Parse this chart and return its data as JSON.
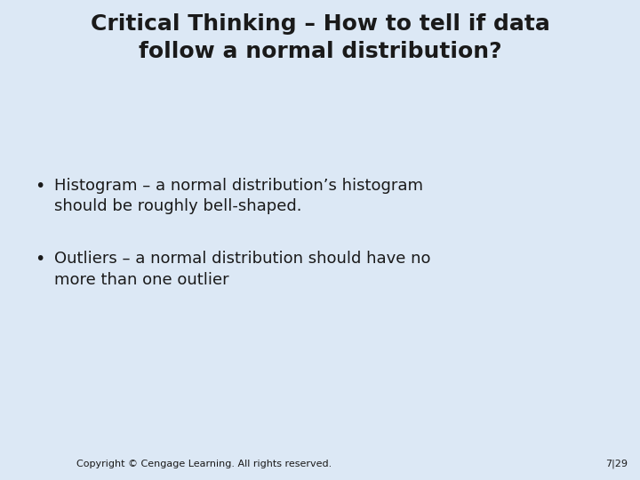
{
  "title_line1": "Critical Thinking – How to tell if data",
  "title_line2": "follow a normal distribution?",
  "bullet1_line1": "Histogram – a normal distribution’s histogram",
  "bullet1_line2": "should be roughly bell-shaped.",
  "bullet2_line1": "Outliers – a normal distribution should have no",
  "bullet2_line2": "more than one outlier",
  "footer_left": "Copyright © Cengage Learning. All rights reserved.",
  "footer_right": "7|29",
  "bg_color": "#dce8f5",
  "footer_bg": "#7c9bb5",
  "title_color": "#1a1a1a",
  "body_color": "#1a1a1a",
  "footer_color": "#1a1a1a",
  "title_fontsize": 18,
  "bullet_fontsize": 13,
  "footer_fontsize": 8
}
